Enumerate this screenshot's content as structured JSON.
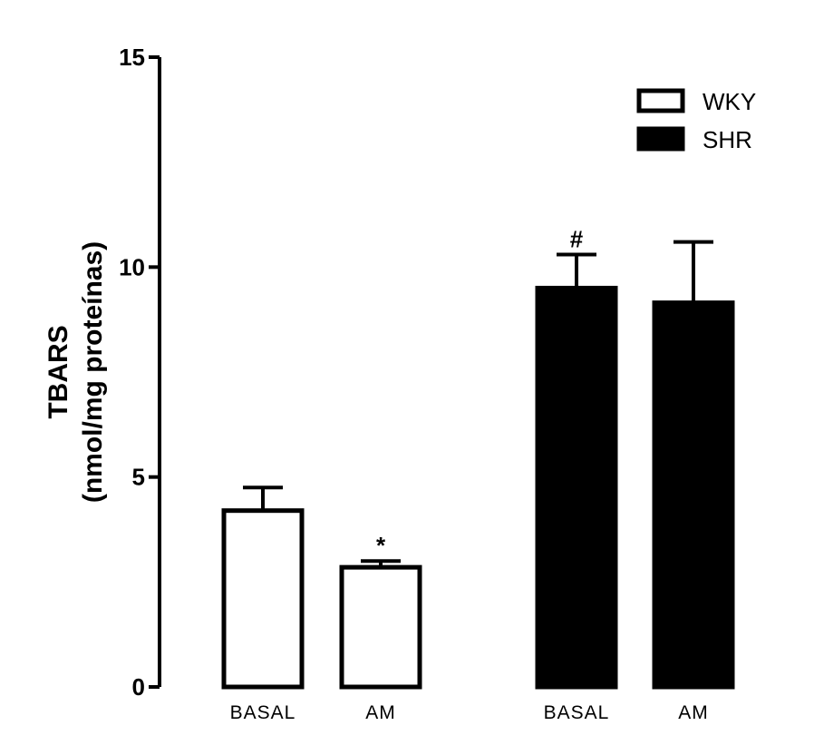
{
  "chart_data": {
    "type": "bar",
    "title": "",
    "ylabel": "TBARS",
    "ylabel_units": "(nmol/mg proteínas)",
    "ylim": [
      0,
      15
    ],
    "yticks": [
      0,
      5,
      10,
      15
    ],
    "grid": false,
    "legend_position": "top-right",
    "categories": [
      "BASAL",
      "AM",
      "BASAL",
      "AM"
    ],
    "series": [
      {
        "name": "WKY",
        "fill": "#ffffff",
        "stroke": "#000000",
        "indices": [
          0,
          1
        ]
      },
      {
        "name": "SHR",
        "fill": "#000000",
        "stroke": "#000000",
        "indices": [
          2,
          3
        ]
      }
    ],
    "values": [
      4.2,
      2.85,
      9.5,
      9.15
    ],
    "errors": [
      0.55,
      0.15,
      0.8,
      1.45
    ],
    "annotations": [
      "",
      "*",
      "#",
      ""
    ]
  }
}
